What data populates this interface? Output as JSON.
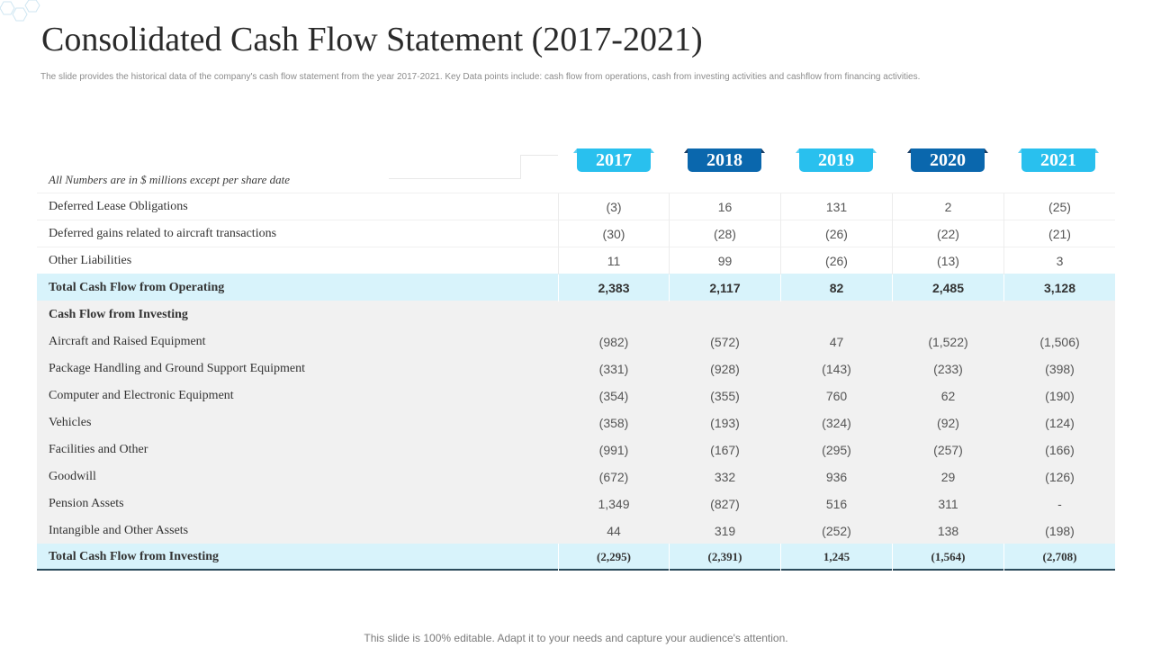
{
  "title": "Consolidated Cash Flow Statement (2017-2021)",
  "subtitle": "The slide provides the historical data of the company's cash flow statement from the year 2017-2021. Key Data points include: cash flow from operations, cash from investing activities and cashflow from financing activities.",
  "header_note": "All Numbers are in $ millions except per share date",
  "colors": {
    "light_tab": "#29c0ee",
    "light_tab_ear": "#5ccff2",
    "dark_tab": "#0a67ad",
    "dark_tab_ear": "#1b3f66",
    "total_row": "#d8f3fb",
    "shaded_row": "#f1f1f1"
  },
  "years": [
    {
      "label": "2017",
      "style": "light"
    },
    {
      "label": "2018",
      "style": "dark"
    },
    {
      "label": "2019",
      "style": "light"
    },
    {
      "label": "2020",
      "style": "dark"
    },
    {
      "label": "2021",
      "style": "light"
    }
  ],
  "rows": [
    {
      "label": "Deferred Lease Obligations",
      "values": [
        "(3)",
        "16",
        "131",
        "2",
        "(25)"
      ],
      "type": "normal"
    },
    {
      "label": "Deferred gains related to aircraft transactions",
      "values": [
        "(30)",
        "(28)",
        "(26)",
        "(22)",
        "(21)"
      ],
      "type": "normal"
    },
    {
      "label": "Other Liabilities",
      "values": [
        "11",
        "99",
        "(26)",
        "(13)",
        "3"
      ],
      "type": "normal"
    },
    {
      "label": "Total  Cash Flow from Operating",
      "values": [
        "2,383",
        "2,117",
        "82",
        "2,485",
        "3,128"
      ],
      "type": "total"
    },
    {
      "label": "Cash Flow from Investing",
      "values": [
        "",
        "",
        "",
        "",
        ""
      ],
      "type": "section"
    },
    {
      "label": "Aircraft and Raised Equipment",
      "values": [
        "(982)",
        "(572)",
        "47",
        "(1,522)",
        "(1,506)"
      ],
      "type": "shaded"
    },
    {
      "label": "Package Handling and Ground Support Equipment",
      "values": [
        "(331)",
        "(928)",
        "(143)",
        "(233)",
        "(398)"
      ],
      "type": "shaded"
    },
    {
      "label": "Computer and Electronic Equipment",
      "values": [
        "(354)",
        "(355)",
        "760",
        "62",
        "(190)"
      ],
      "type": "shaded"
    },
    {
      "label": "Vehicles",
      "values": [
        "(358)",
        "(193)",
        "(324)",
        "(92)",
        "(124)"
      ],
      "type": "shaded"
    },
    {
      "label": "Facilities and Other",
      "values": [
        "(991)",
        "(167)",
        "(295)",
        "(257)",
        "(166)"
      ],
      "type": "shaded"
    },
    {
      "label": "Goodwill",
      "values": [
        "(672)",
        "332",
        "936",
        "29",
        "(126)"
      ],
      "type": "shaded"
    },
    {
      "label": "Pension Assets",
      "values": [
        "1,349",
        "(827)",
        "516",
        "311",
        "-"
      ],
      "type": "shaded"
    },
    {
      "label": "Intangible and Other Assets",
      "values": [
        "44",
        "319",
        "(252)",
        "138",
        "(198)"
      ],
      "type": "shaded"
    },
    {
      "label": "Total Cash Flow from Investing",
      "values": [
        "(2,295)",
        "(2,391)",
        "1,245",
        "(1,564)",
        "(2,708)"
      ],
      "type": "final"
    }
  ],
  "footer": "This slide is 100% editable. Adapt it to your needs and capture your audience's attention."
}
